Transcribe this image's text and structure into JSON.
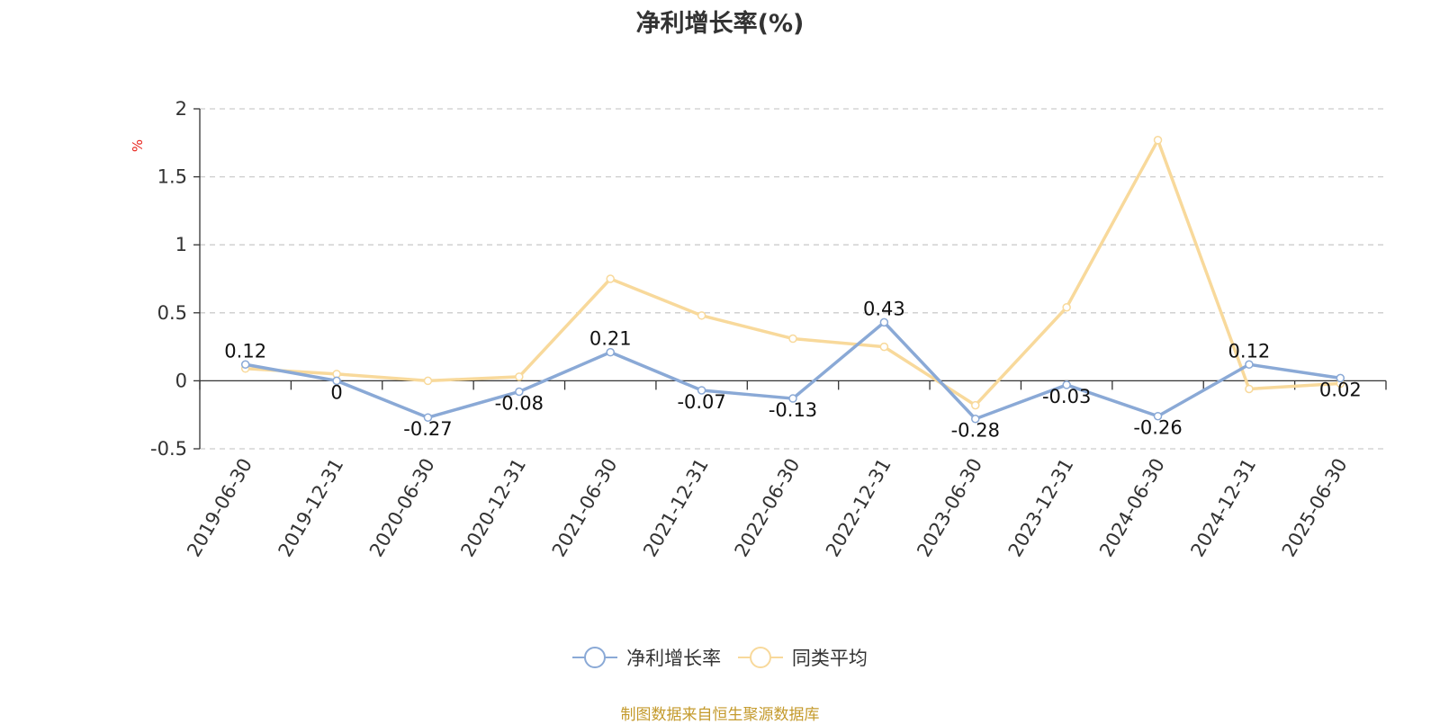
{
  "title": "净利增长率(%)",
  "source": "制图数据来自恒生聚源数据库",
  "colors": {
    "series1": "#8aa9d6",
    "series2": "#f8d99b",
    "unit": "#e8231c",
    "grid": "#cccccc",
    "axis": "#333333"
  },
  "chart_data": {
    "type": "line",
    "title": "净利增长率(%)",
    "ylabel": "%",
    "ylim": [
      -0.5,
      2
    ],
    "yticks": [
      "2",
      "1.5",
      "1",
      "0.5",
      "0",
      "-0.5"
    ],
    "yticks_values": [
      2,
      1.5,
      1,
      0.5,
      0,
      -0.5
    ],
    "grid": true,
    "legend_position": "bottom-center",
    "categories": [
      "2019-06-30",
      "2019-12-31",
      "2020-06-30",
      "2020-12-31",
      "2021-06-30",
      "2021-12-31",
      "2022-06-30",
      "2022-12-31",
      "2023-06-30",
      "2023-12-31",
      "2024-06-30",
      "2024-12-31",
      "2025-06-30"
    ],
    "series": [
      {
        "name": "净利增长率",
        "values": [
          0.12,
          0,
          -0.27,
          -0.08,
          0.21,
          -0.07,
          -0.13,
          0.43,
          -0.28,
          -0.03,
          -0.26,
          0.12,
          0.02
        ],
        "labels": [
          "0.12",
          "0",
          "-0.27",
          "-0.08",
          "0.21",
          "-0.07",
          "-0.13",
          "0.43",
          "-0.28",
          "-0.03",
          "-0.26",
          "0.12",
          "0.02"
        ]
      },
      {
        "name": "同类平均",
        "values": [
          0.09,
          0.05,
          0.0,
          0.03,
          0.75,
          0.48,
          0.31,
          0.25,
          -0.18,
          0.54,
          1.77,
          -0.06,
          -0.02
        ]
      }
    ]
  }
}
